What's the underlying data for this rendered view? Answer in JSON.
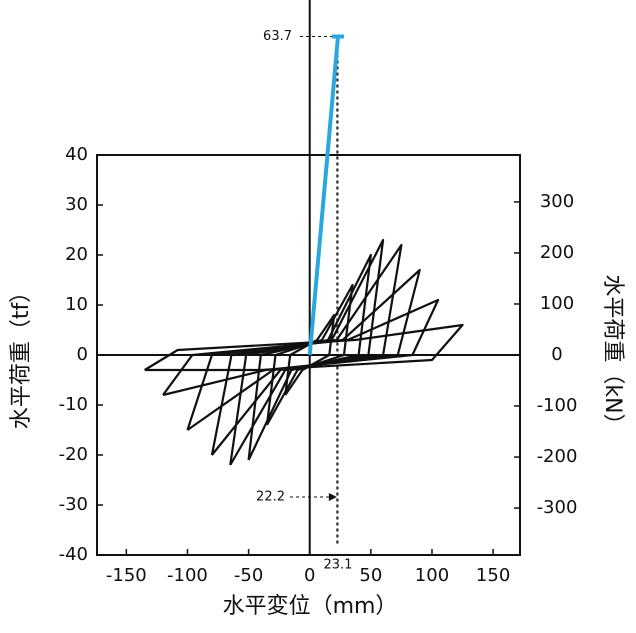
{
  "chart_data": {
    "type": "line",
    "x_label": "水平変位（mm）",
    "y_label": "水平荷重（tf）",
    "y2_label": "水平荷重（kN）",
    "xlim": [
      -174,
      172
    ],
    "ylim": [
      -40,
      40
    ],
    "y2lim": [
      -392,
      392
    ],
    "xticks": [
      -150,
      -100,
      -50,
      0,
      50,
      100,
      150
    ],
    "yticks": [
      -40,
      -30,
      -20,
      -10,
      0,
      10,
      20,
      30,
      40
    ],
    "y2ticks": [
      -300,
      -200,
      -100,
      0,
      100,
      200,
      300
    ],
    "grid": false,
    "series": [
      {
        "color": "#111111",
        "x": [
          -20,
          -16,
          6,
          20,
          16,
          -6,
          -20
        ],
        "values": [
          -8,
          0,
          3,
          8,
          0,
          -3,
          -8
        ]
      },
      {
        "color": "#111111",
        "x": [
          -35,
          -28,
          10,
          35,
          28,
          -10,
          -35
        ],
        "values": [
          -14,
          0,
          3,
          14,
          0,
          -3,
          -14
        ]
      },
      {
        "color": "#111111",
        "x": [
          -50,
          -40,
          15,
          50,
          40,
          -15,
          -50
        ],
        "values": [
          -21,
          0,
          3,
          20,
          0,
          -3,
          -21
        ]
      },
      {
        "color": "#111111",
        "x": [
          -65,
          -52,
          18,
          60,
          48,
          -20,
          -65
        ],
        "values": [
          -22,
          0,
          3,
          23,
          0,
          -3,
          -22
        ]
      },
      {
        "color": "#111111",
        "x": [
          -80,
          -64,
          22,
          75,
          60,
          -24,
          -80
        ],
        "values": [
          -20,
          0,
          3,
          22,
          0,
          -3,
          -20
        ]
      },
      {
        "color": "#111111",
        "x": [
          -100,
          -80,
          27,
          90,
          72,
          -30,
          -100
        ],
        "values": [
          -15,
          0,
          3,
          17,
          0,
          -3,
          -15
        ]
      },
      {
        "color": "#111111",
        "x": [
          -120,
          -96,
          31,
          105,
          84,
          -36,
          -120
        ],
        "values": [
          -8,
          0,
          3,
          11,
          0,
          -3,
          -8
        ]
      },
      {
        "color": "#111111",
        "x": [
          -135,
          -108,
          37,
          125,
          100,
          -40,
          -135
        ],
        "values": [
          -3,
          1,
          3,
          6,
          -1,
          -3,
          -3
        ]
      }
    ],
    "annotations": {
      "y_value": 63.7,
      "x_values": [
        22.2,
        23.1
      ],
      "color": "#2aa7df"
    }
  }
}
